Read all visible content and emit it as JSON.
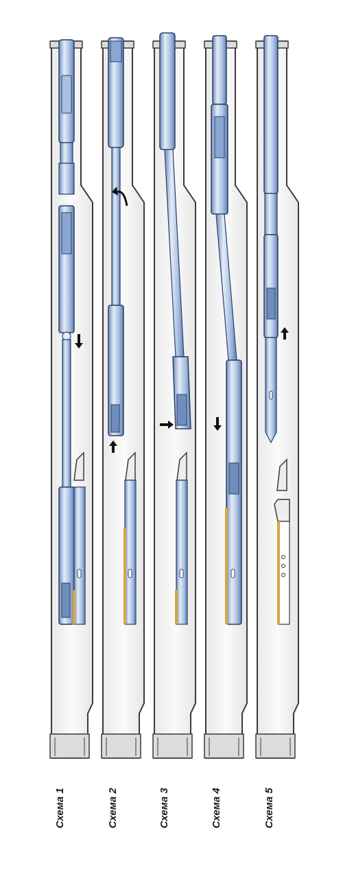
{
  "figure": {
    "captions": [
      "Схема 1",
      "Схема 2",
      "Схема 3",
      "Схема 4",
      "Схема 5"
    ],
    "colors": {
      "casing": "#3a3a3a",
      "casing_fill": "#f4f4f4",
      "tool_light": "#e3ecf8",
      "tool_mid": "#a9c0e2",
      "tool_dark": "#6f8dbd",
      "tool_outline": "#2c3f63",
      "whipstock_yellow": "#d6a642",
      "arrow": "#111111",
      "text": "#1a1a1a"
    },
    "arrows": [
      {
        "scheme": 1,
        "direction": "down"
      },
      {
        "scheme": 2,
        "direction": "up"
      },
      {
        "scheme": 3,
        "direction": "right"
      },
      {
        "scheme": 4,
        "direction": "down"
      },
      {
        "scheme": 5,
        "direction": "up"
      }
    ]
  }
}
